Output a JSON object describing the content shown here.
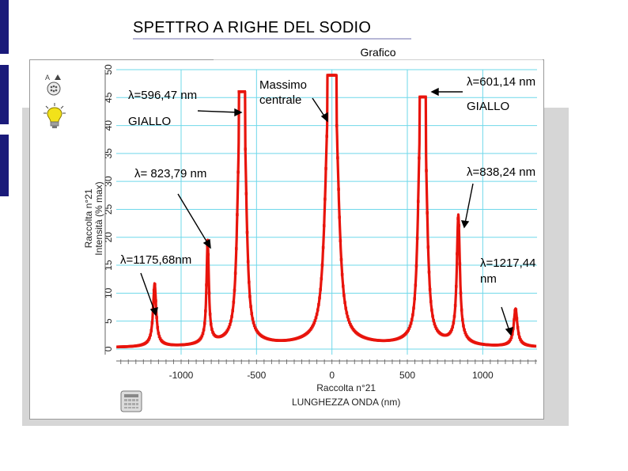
{
  "slide": {
    "title": "SPETTRO A RIGHE DEL SODIO"
  },
  "window": {
    "tab_label": "Grafico"
  },
  "icons": {
    "sensor": "sensor-icon",
    "bulb": "lightbulb-icon",
    "table": "table-icon"
  },
  "colors": {
    "series": "#e8140c",
    "grid": "#6fd8ea",
    "title_bar": "#1a1a7a"
  },
  "annotations": [
    {
      "text": "λ=596,47 nm"
    },
    {
      "text": "GIALLO"
    },
    {
      "text": "λ= 823,79 nm"
    },
    {
      "text": "λ=1175,68nm"
    },
    {
      "text": "Massimo"
    },
    {
      "text": "centrale"
    },
    {
      "text": "λ=601,14 nm"
    },
    {
      "text": "GIALLO"
    },
    {
      "text": "λ=838,24 nm"
    },
    {
      "text": "λ=1217,44"
    },
    {
      "text": "nm"
    }
  ],
  "chart_data": {
    "type": "line",
    "title": "",
    "xlabel_lines": [
      "Raccolta n°21",
      "LUNGHEZZA ONDA (nm)"
    ],
    "ylabel_lines": [
      "Raccolta n°21",
      "Intensità (% max)"
    ],
    "xlim": [
      -1430,
      1360
    ],
    "ylim": [
      -1,
      50
    ],
    "xticks": [
      -1000,
      -500,
      0,
      500,
      1000
    ],
    "xtick_labels": [
      "-1000",
      "-500",
      "0",
      "500",
      "1000"
    ],
    "yticks": [
      0,
      5,
      10,
      15,
      20,
      25,
      30,
      35,
      40,
      45,
      50
    ],
    "grid": true,
    "legend": "none",
    "series": [
      {
        "peaks": [
          {
            "center": -1175.68,
            "height": 10.8,
            "width": 12
          },
          {
            "center": -823.79,
            "height": 17.6,
            "width": 9
          },
          {
            "center": -596.47,
            "height": 45.5,
            "width": 30,
            "flat": true
          },
          {
            "center": 0,
            "height": 49.0,
            "width": 45,
            "flat": true
          },
          {
            "center": 601.14,
            "height": 44.5,
            "width": 30,
            "flat": true
          },
          {
            "center": 838.24,
            "height": 22.0,
            "width": 12
          },
          {
            "center": 1217.44,
            "height": 6.5,
            "width": 14
          }
        ],
        "baseline": 0.2
      }
    ]
  }
}
